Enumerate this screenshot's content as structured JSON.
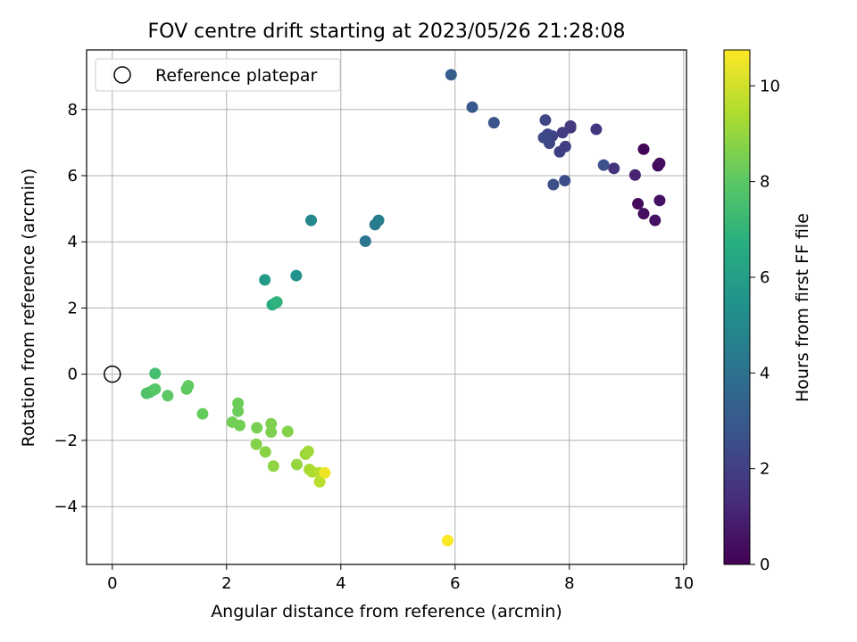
{
  "chart_data": {
    "type": "scatter",
    "title": "FOV centre drift starting at 2023/05/26 21:28:08",
    "xlabel": "Angular distance from reference (arcmin)",
    "ylabel": "Rotation from reference (arcmin)",
    "xlim": [
      -0.45,
      10.05
    ],
    "ylim": [
      -5.75,
      9.8
    ],
    "xticks": [
      0,
      2,
      4,
      6,
      8,
      10
    ],
    "yticks": [
      -4,
      -2,
      0,
      2,
      4,
      6,
      8
    ],
    "grid": true,
    "legend": {
      "location": "upper-left",
      "entries": [
        "Reference platepar"
      ]
    },
    "reference_point": {
      "x": 0,
      "y": 0,
      "marker": "open-circle"
    },
    "colorbar": {
      "label": "Hours from first FF file",
      "colormap": "viridis",
      "range": [
        0,
        10.75
      ],
      "ticks": [
        0,
        2,
        4,
        6,
        8,
        10
      ]
    },
    "points": [
      {
        "x": 9.3,
        "y": 6.8,
        "c": 0.1
      },
      {
        "x": 9.55,
        "y": 6.3,
        "c": 0.2
      },
      {
        "x": 9.58,
        "y": 6.37,
        "c": 0.3
      },
      {
        "x": 9.2,
        "y": 5.15,
        "c": 0.3
      },
      {
        "x": 9.3,
        "y": 4.85,
        "c": 0.4
      },
      {
        "x": 9.5,
        "y": 4.65,
        "c": 0.5
      },
      {
        "x": 9.58,
        "y": 5.25,
        "c": 0.5
      },
      {
        "x": 9.15,
        "y": 6.02,
        "c": 1.0
      },
      {
        "x": 8.78,
        "y": 6.22,
        "c": 1.5
      },
      {
        "x": 8.47,
        "y": 7.4,
        "c": 1.7
      },
      {
        "x": 8.02,
        "y": 7.45,
        "c": 1.6
      },
      {
        "x": 8.02,
        "y": 7.5,
        "c": 1.8
      },
      {
        "x": 7.88,
        "y": 7.3,
        "c": 1.9
      },
      {
        "x": 7.93,
        "y": 6.88,
        "c": 2.0
      },
      {
        "x": 7.83,
        "y": 6.72,
        "c": 2.0
      },
      {
        "x": 7.7,
        "y": 7.2,
        "c": 2.1
      },
      {
        "x": 7.58,
        "y": 7.68,
        "c": 2.2
      },
      {
        "x": 7.62,
        "y": 7.25,
        "c": 2.3
      },
      {
        "x": 7.55,
        "y": 7.15,
        "c": 2.4
      },
      {
        "x": 7.65,
        "y": 6.98,
        "c": 2.3
      },
      {
        "x": 7.92,
        "y": 5.85,
        "c": 2.5
      },
      {
        "x": 7.72,
        "y": 5.73,
        "c": 2.6
      },
      {
        "x": 8.6,
        "y": 6.32,
        "c": 2.7
      },
      {
        "x": 6.68,
        "y": 7.6,
        "c": 2.7
      },
      {
        "x": 6.3,
        "y": 8.07,
        "c": 3.0
      },
      {
        "x": 5.93,
        "y": 9.05,
        "c": 3.2
      },
      {
        "x": 4.43,
        "y": 4.02,
        "c": 4.2
      },
      {
        "x": 4.6,
        "y": 4.52,
        "c": 4.4
      },
      {
        "x": 4.66,
        "y": 4.65,
        "c": 4.5
      },
      {
        "x": 3.48,
        "y": 4.65,
        "c": 5.0
      },
      {
        "x": 3.22,
        "y": 2.98,
        "c": 5.4
      },
      {
        "x": 2.67,
        "y": 2.85,
        "c": 5.8
      },
      {
        "x": 2.8,
        "y": 2.1,
        "c": 6.5
      },
      {
        "x": 2.85,
        "y": 2.15,
        "c": 6.7
      },
      {
        "x": 2.88,
        "y": 2.18,
        "c": 6.9
      },
      {
        "x": 0.75,
        "y": 0.02,
        "c": 7.5
      },
      {
        "x": 0.65,
        "y": -0.55,
        "c": 7.6
      },
      {
        "x": 0.6,
        "y": -0.58,
        "c": 7.7
      },
      {
        "x": 0.72,
        "y": -0.48,
        "c": 7.8
      },
      {
        "x": 0.75,
        "y": -0.45,
        "c": 7.9
      },
      {
        "x": 0.97,
        "y": -0.65,
        "c": 8.0
      },
      {
        "x": 1.3,
        "y": -0.45,
        "c": 8.1
      },
      {
        "x": 1.33,
        "y": -0.35,
        "c": 8.1
      },
      {
        "x": 1.58,
        "y": -1.2,
        "c": 8.2
      },
      {
        "x": 2.2,
        "y": -0.88,
        "c": 8.3
      },
      {
        "x": 2.2,
        "y": -1.12,
        "c": 8.3
      },
      {
        "x": 2.1,
        "y": -1.45,
        "c": 8.4
      },
      {
        "x": 2.23,
        "y": -1.55,
        "c": 8.4
      },
      {
        "x": 2.53,
        "y": -1.62,
        "c": 8.5
      },
      {
        "x": 2.78,
        "y": -1.5,
        "c": 8.6
      },
      {
        "x": 2.78,
        "y": -1.75,
        "c": 8.6
      },
      {
        "x": 3.07,
        "y": -1.73,
        "c": 8.7
      },
      {
        "x": 2.52,
        "y": -2.12,
        "c": 8.7
      },
      {
        "x": 2.68,
        "y": -2.35,
        "c": 8.8
      },
      {
        "x": 2.82,
        "y": -2.78,
        "c": 8.9
      },
      {
        "x": 3.23,
        "y": -2.73,
        "c": 9.0
      },
      {
        "x": 3.38,
        "y": -2.42,
        "c": 9.1
      },
      {
        "x": 3.43,
        "y": -2.33,
        "c": 9.2
      },
      {
        "x": 3.45,
        "y": -2.88,
        "c": 9.3
      },
      {
        "x": 3.5,
        "y": -2.95,
        "c": 9.4
      },
      {
        "x": 3.62,
        "y": -2.98,
        "c": 9.5
      },
      {
        "x": 3.63,
        "y": -3.25,
        "c": 9.6
      },
      {
        "x": 3.72,
        "y": -2.98,
        "c": 10.5
      },
      {
        "x": 5.87,
        "y": -5.03,
        "c": 10.7
      }
    ]
  }
}
